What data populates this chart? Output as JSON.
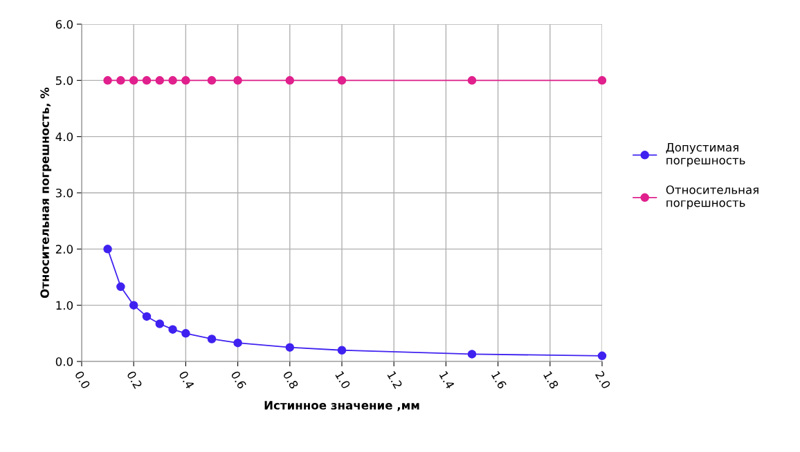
{
  "chart_data": {
    "type": "line",
    "xlabel": "Истинное значение ,мм",
    "ylabel": "Относительная погрешность, %",
    "x": [
      0.1,
      0.15,
      0.2,
      0.25,
      0.3,
      0.35,
      0.4,
      0.5,
      0.6,
      0.8,
      1.0,
      1.5,
      2.0
    ],
    "series": [
      {
        "name": "Допустимая\nпогрешность",
        "color": "#3f22f0",
        "values": [
          2.0,
          1.33,
          1.0,
          0.8,
          0.67,
          0.57,
          0.5,
          0.4,
          0.33,
          0.25,
          0.2,
          0.13,
          0.1
        ]
      },
      {
        "name": "Относительная\nпогрешность",
        "color": "#e0208c",
        "values": [
          5.0,
          5.0,
          5.0,
          5.0,
          5.0,
          5.0,
          5.0,
          5.0,
          5.0,
          5.0,
          5.0,
          5.0,
          5.0
        ]
      }
    ],
    "xlim": [
      0.0,
      2.0
    ],
    "xticks": [
      {
        "value": 0.0,
        "label": "0.0"
      },
      {
        "value": 0.2,
        "label": "0.2"
      },
      {
        "value": 0.4,
        "label": "0.4"
      },
      {
        "value": 0.6,
        "label": "0.6"
      },
      {
        "value": 0.8,
        "label": "0.8"
      },
      {
        "value": 1.0,
        "label": "1.0"
      },
      {
        "value": 1.2,
        "label": "1.2"
      },
      {
        "value": 1.4,
        "label": "1.4"
      },
      {
        "value": 1.6,
        "label": "1.6"
      },
      {
        "value": 1.8,
        "label": "1.8"
      },
      {
        "value": 2.0,
        "label": "2.0"
      }
    ],
    "ylim": [
      0.0,
      6.0
    ],
    "yticks": [
      {
        "value": 0.0,
        "label": "0.0"
      },
      {
        "value": 1.0,
        "label": "1.0"
      },
      {
        "value": 2.0,
        "label": "2.0"
      },
      {
        "value": 3.0,
        "label": "3.0"
      },
      {
        "value": 4.0,
        "label": "4.0"
      },
      {
        "value": 5.0,
        "label": "5.0"
      },
      {
        "value": 6.0,
        "label": "6.0"
      }
    ],
    "grid": true,
    "legend": "right",
    "marker": "circle",
    "line_style": "solid"
  }
}
